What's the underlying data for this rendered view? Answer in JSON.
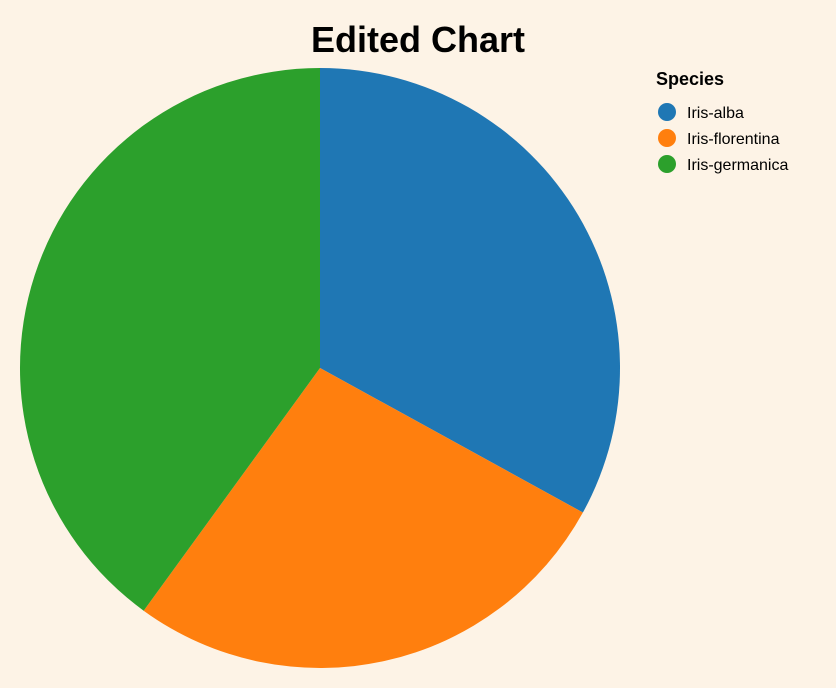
{
  "chart_data": {
    "type": "pie",
    "title": "Edited Chart",
    "legend": {
      "title": "Species",
      "placement": "top-right"
    },
    "categories": [
      "Iris-alba",
      "Iris-florentina",
      "Iris-germanica"
    ],
    "values": [
      33,
      27,
      40
    ],
    "colors": [
      "#1f77b4",
      "#ff7f0e",
      "#2ca02c"
    ],
    "start_angle_deg": 0,
    "direction": "clockwise"
  }
}
